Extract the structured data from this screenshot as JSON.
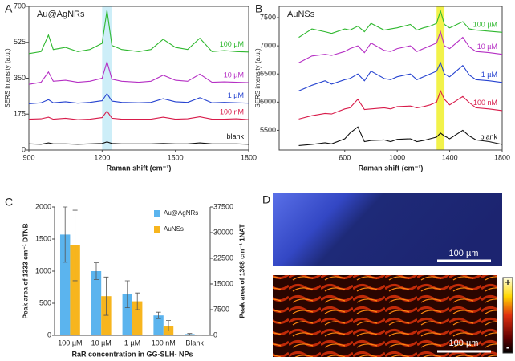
{
  "chart_data": [
    {
      "type": "line",
      "panel_label": "A",
      "title": "Au@AgNRs",
      "xlabel": "Raman shift (cm⁻¹)",
      "ylabel": "SERS intensity (a.u.)",
      "xlim": [
        900,
        1800
      ],
      "xticks": [
        900,
        1200,
        1500,
        1800
      ],
      "ylim": [
        0,
        700
      ],
      "yticks": [
        0,
        175,
        350,
        525,
        700
      ],
      "highlight": [
        1200,
        1240
      ],
      "highlight_color": "#cdeef8",
      "x": [
        900,
        950,
        980,
        1000,
        1050,
        1100,
        1150,
        1200,
        1220,
        1240,
        1280,
        1350,
        1400,
        1450,
        1500,
        1550,
        1600,
        1650,
        1700,
        1750,
        1800
      ],
      "series": [
        {
          "name": "blank",
          "color": "#111111",
          "values": [
            30,
            28,
            35,
            30,
            30,
            28,
            30,
            32,
            40,
            32,
            30,
            30,
            30,
            32,
            30,
            30,
            35,
            30,
            30,
            30,
            28
          ]
        },
        {
          "name": "100 nM",
          "color": "#d81b4a",
          "values": [
            150,
            152,
            160,
            150,
            155,
            148,
            150,
            158,
            190,
            155,
            150,
            150,
            150,
            160,
            150,
            152,
            162,
            150,
            150,
            152,
            148
          ]
        },
        {
          "name": "1 µM",
          "color": "#2744d0",
          "values": [
            225,
            230,
            245,
            230,
            235,
            228,
            232,
            240,
            275,
            238,
            232,
            230,
            232,
            250,
            235,
            232,
            255,
            230,
            232,
            230,
            228
          ]
        },
        {
          "name": "10 µM",
          "color": "#b52fc4",
          "values": [
            320,
            330,
            380,
            335,
            340,
            330,
            335,
            350,
            430,
            345,
            335,
            330,
            335,
            365,
            340,
            335,
            370,
            330,
            332,
            330,
            328
          ]
        },
        {
          "name": "100 µM",
          "color": "#2fb82f",
          "values": [
            470,
            480,
            560,
            490,
            500,
            480,
            490,
            520,
            680,
            510,
            490,
            480,
            490,
            540,
            500,
            490,
            545,
            480,
            485,
            480,
            478
          ]
        }
      ]
    },
    {
      "type": "line",
      "panel_label": "B",
      "title": "AuNSs",
      "xlabel": "Raman shift (cm⁻¹)",
      "ylabel": "SERS intensity (a.u.)",
      "xlim": [
        100,
        1800
      ],
      "xticks": [
        600,
        1000,
        1400,
        1800
      ],
      "ylim": [
        5150,
        7700
      ],
      "yticks": [
        5500,
        6000,
        6500,
        7000,
        7500
      ],
      "highlight": [
        1300,
        1360
      ],
      "highlight_color": "#f2f24a",
      "x": [
        250,
        350,
        450,
        500,
        600,
        640,
        700,
        750,
        800,
        900,
        950,
        1000,
        1100,
        1150,
        1200,
        1250,
        1300,
        1330,
        1360,
        1400,
        1500,
        1550,
        1600,
        1700,
        1800
      ],
      "series": [
        {
          "name": "blank",
          "color": "#111111",
          "values": [
            5230,
            5250,
            5280,
            5260,
            5350,
            5450,
            5560,
            5300,
            5320,
            5330,
            5300,
            5340,
            5350,
            5300,
            5320,
            5350,
            5380,
            5450,
            5400,
            5350,
            5500,
            5400,
            5330,
            5300,
            5250
          ]
        },
        {
          "name": "100 nM",
          "color": "#d81b4a",
          "values": [
            5700,
            5760,
            5800,
            5790,
            5880,
            5900,
            6050,
            5870,
            5880,
            5900,
            5880,
            5920,
            5930,
            5900,
            5920,
            5950,
            6000,
            6200,
            6050,
            5950,
            6100,
            5990,
            5900,
            5880,
            5850
          ]
        },
        {
          "name": "1 µM",
          "color": "#2744d0",
          "values": [
            6200,
            6300,
            6380,
            6320,
            6400,
            6420,
            6500,
            6380,
            6550,
            6420,
            6400,
            6450,
            6500,
            6400,
            6450,
            6500,
            6550,
            6700,
            6500,
            6450,
            6650,
            6480,
            6400,
            6380,
            6350
          ]
        },
        {
          "name": "10 µM",
          "color": "#b52fc4",
          "values": [
            6700,
            6820,
            6850,
            6830,
            6900,
            6950,
            7000,
            6880,
            7050,
            6920,
            6900,
            6950,
            7000,
            6900,
            6950,
            7000,
            7050,
            7250,
            7000,
            6950,
            7150,
            6980,
            6900,
            6880,
            6850
          ]
        },
        {
          "name": "100 µM",
          "color": "#2fb82f",
          "values": [
            7150,
            7300,
            7250,
            7220,
            7300,
            7280,
            7350,
            7250,
            7400,
            7280,
            7300,
            7320,
            7380,
            7280,
            7320,
            7350,
            7400,
            7620,
            7380,
            7320,
            7430,
            7300,
            7280,
            7260,
            7240
          ]
        }
      ]
    },
    {
      "type": "bar",
      "panel_label": "C",
      "xlabel": "RaR concentration in GG-SLH- NPs",
      "ylabel": "Peak area of 1333 cm⁻¹ DTNB",
      "y2label": "Peak area of 1368 cm⁻¹ 1NAT",
      "categories": [
        "100 µM",
        "10 µM",
        "1 µM",
        "100 nM",
        "Blank"
      ],
      "ylim": [
        0,
        2000
      ],
      "yticks": [
        0,
        500,
        1000,
        1500,
        2000
      ],
      "y2lim": [
        0,
        37500
      ],
      "y2ticks": [
        0,
        7500,
        15000,
        22500,
        30000,
        37500
      ],
      "series": [
        {
          "name": "Au@AgNRs",
          "color": "#5bb4ee",
          "values": [
            1570,
            1000,
            640,
            310,
            20
          ],
          "errors": [
            430,
            130,
            210,
            50,
            10
          ]
        },
        {
          "name": "AuNSs",
          "color": "#f7b51e",
          "axis": "y2",
          "values": [
            26250,
            11440,
            9940,
            2810,
            0
          ],
          "errors": [
            10300,
            5600,
            2440,
            1500,
            0
          ]
        }
      ]
    }
  ],
  "panel_d": {
    "label": "D",
    "scale_bar_top": "100 µm",
    "scale_bar_bottom": "100 µm",
    "colorbar_max": "+",
    "colorbar_min": "-"
  }
}
